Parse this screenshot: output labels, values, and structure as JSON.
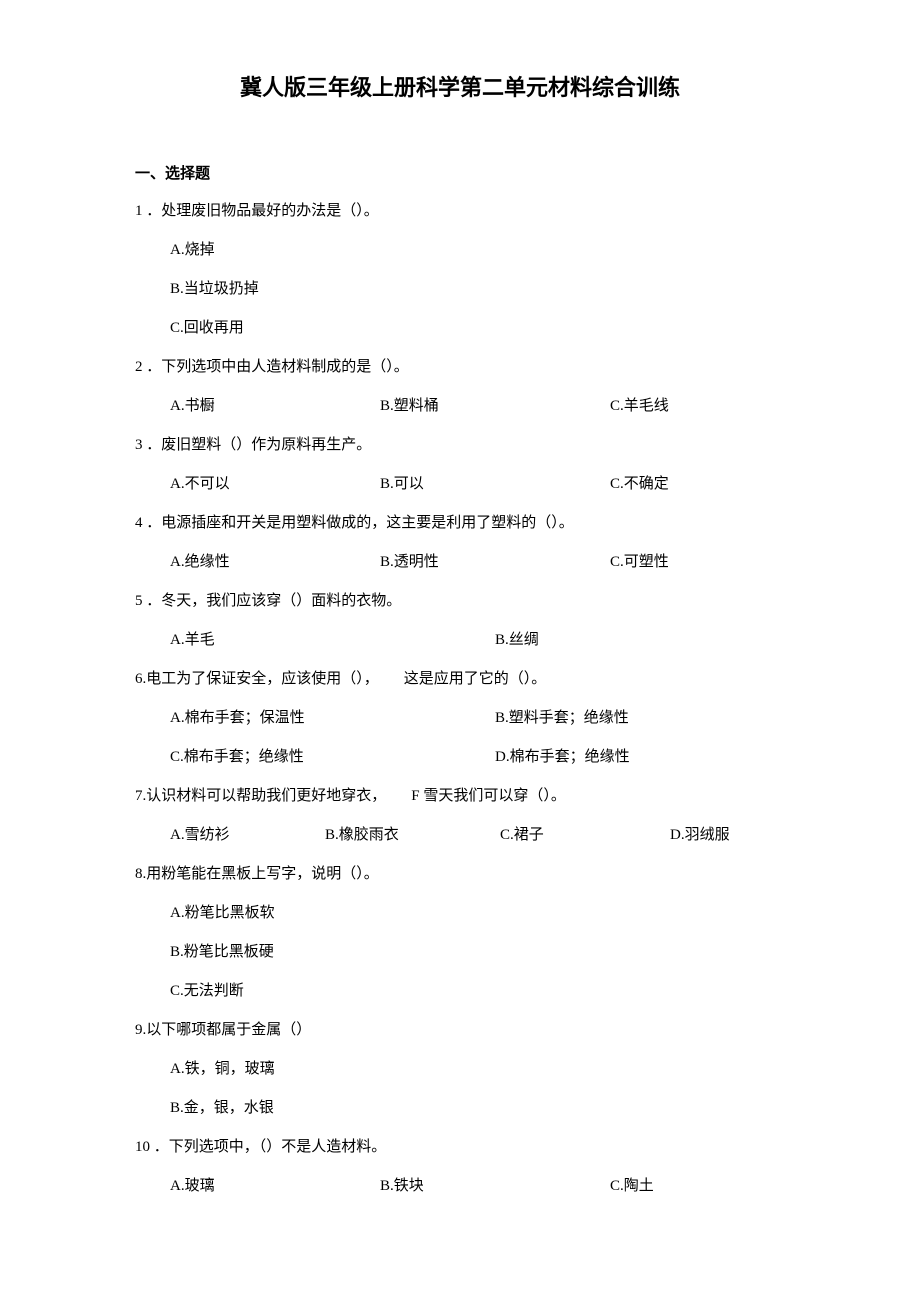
{
  "title": "冀人版三年级上册科学第二单元材料综合训练",
  "section1": {
    "header": "一、选择题",
    "q1": {
      "text": "1 ．处理废旧物品最好的办法是（）。",
      "a": "A.烧掉",
      "b": "B.当垃圾扔掉",
      "c": "C.回收再用"
    },
    "q2": {
      "text": "2 ．下列选项中由人造材料制成的是（）。",
      "a": "A.书橱",
      "b": "B.塑料桶",
      "c": "C.羊毛线"
    },
    "q3": {
      "text": "3 ．废旧塑料（）作为原料再生产。",
      "a": "A.不可以",
      "b": "B.可以",
      "c": "C.不确定"
    },
    "q4": {
      "text": "4 ．电源插座和开关是用塑料做成的，这主要是利用了塑料的（）。",
      "a": "A.绝缘性",
      "b": "B.透明性",
      "c": "C.可塑性"
    },
    "q5": {
      "text": "5 ．冬天，我们应该穿（）面料的衣物。",
      "a": "A.羊毛",
      "b": "B.丝绸"
    },
    "q6": {
      "text_a": "6.电工为了保证安全，应该使用（），",
      "text_b": "这是应用了它的（）。",
      "a": "A.棉布手套；保温性",
      "b": "B.塑料手套；绝缘性",
      "c": "C.棉布手套；绝缘性",
      "d": "D.棉布手套；绝缘性"
    },
    "q7": {
      "text_a": "7.认识材料可以帮助我们更好地穿衣，",
      "text_b": "F 雪天我们可以穿（）。",
      "a": "A.雪纺衫",
      "b": "B.橡胶雨衣",
      "c": "C.裙子",
      "d": "D.羽绒服"
    },
    "q8": {
      "text": "8.用粉笔能在黑板上写字，说明（）。",
      "a": "A.粉笔比黑板软",
      "b": "B.粉笔比黑板硬",
      "c": "C.无法判断"
    },
    "q9": {
      "text": "9.以下哪项都属于金属（）",
      "a": "A.铁，铜，玻璃",
      "b": "B.金，银，水银"
    },
    "q10": {
      "text": "10 ．下列选项中，（）不是人造材料。",
      "a": "A.玻璃",
      "b": "B.铁块",
      "c": "C.陶土"
    }
  }
}
